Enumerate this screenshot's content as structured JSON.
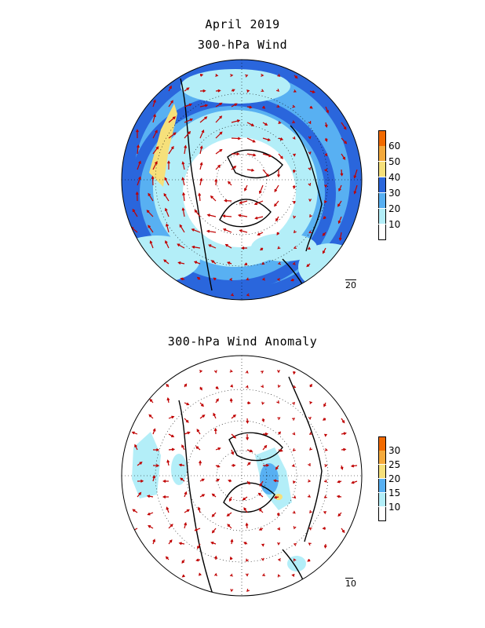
{
  "figure": {
    "title": "April 2019",
    "panels": [
      {
        "title": "300-hPa Wind",
        "legend": {
          "labels": [
            "10",
            "20",
            "30",
            "40",
            "50",
            "60"
          ],
          "colors": [
            "#ffffff",
            "#b3eef8",
            "#58b0f2",
            "#2a66dc",
            "#f6e07a",
            "#f5aa3c",
            "#f26a00"
          ]
        },
        "reference_vector": "20"
      },
      {
        "title": "300-hPa Wind Anomaly",
        "legend": {
          "labels": [
            "10",
            "15",
            "20",
            "25",
            "30"
          ],
          "colors": [
            "#ffffff",
            "#b3eef8",
            "#58b0f2",
            "#f6e07a",
            "#f5aa3c",
            "#f26a00"
          ]
        },
        "reference_vector": "10"
      }
    ]
  }
}
